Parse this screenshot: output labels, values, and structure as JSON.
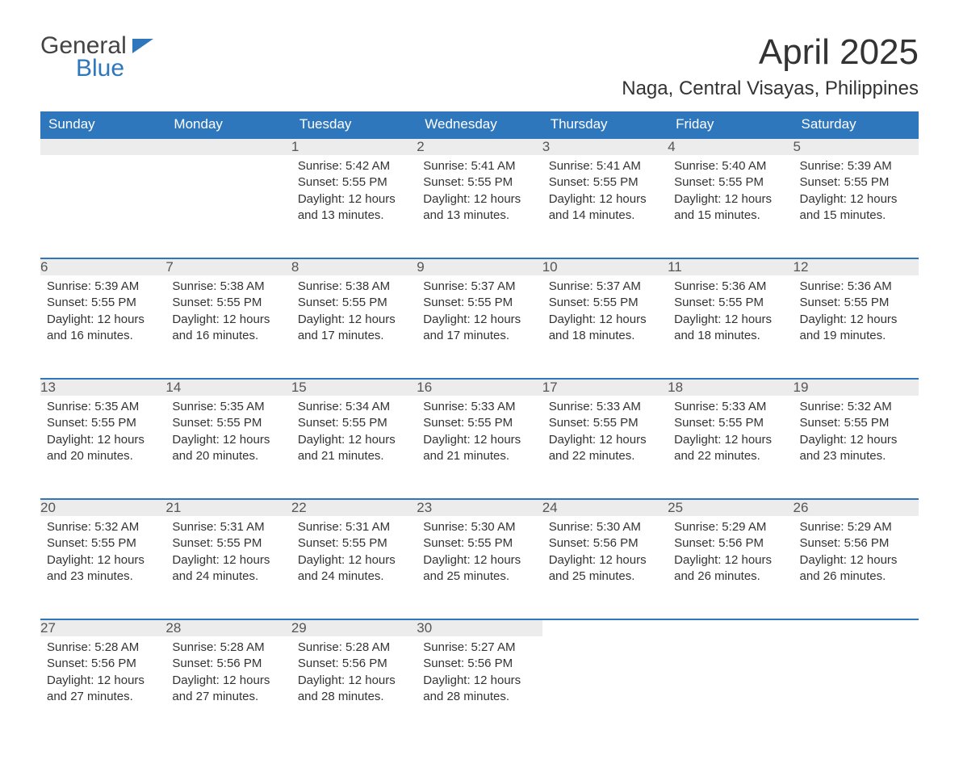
{
  "logo": {
    "general": "General",
    "blue": "Blue"
  },
  "title": "April 2025",
  "location": "Naga, Central Visayas, Philippines",
  "colors": {
    "header_bg": "#2f77bc",
    "header_text": "#ffffff",
    "daynum_bg": "#ececec",
    "daynum_border": "#2f77bc",
    "text": "#333333",
    "background": "#ffffff"
  },
  "layout": {
    "columns": 7,
    "rows": 5,
    "col_width_pct": 14.28
  },
  "weekdays": [
    "Sunday",
    "Monday",
    "Tuesday",
    "Wednesday",
    "Thursday",
    "Friday",
    "Saturday"
  ],
  "weeks": [
    [
      null,
      null,
      {
        "n": "1",
        "sr": "Sunrise: 5:42 AM",
        "ss": "Sunset: 5:55 PM",
        "d1": "Daylight: 12 hours",
        "d2": "and 13 minutes."
      },
      {
        "n": "2",
        "sr": "Sunrise: 5:41 AM",
        "ss": "Sunset: 5:55 PM",
        "d1": "Daylight: 12 hours",
        "d2": "and 13 minutes."
      },
      {
        "n": "3",
        "sr": "Sunrise: 5:41 AM",
        "ss": "Sunset: 5:55 PM",
        "d1": "Daylight: 12 hours",
        "d2": "and 14 minutes."
      },
      {
        "n": "4",
        "sr": "Sunrise: 5:40 AM",
        "ss": "Sunset: 5:55 PM",
        "d1": "Daylight: 12 hours",
        "d2": "and 15 minutes."
      },
      {
        "n": "5",
        "sr": "Sunrise: 5:39 AM",
        "ss": "Sunset: 5:55 PM",
        "d1": "Daylight: 12 hours",
        "d2": "and 15 minutes."
      }
    ],
    [
      {
        "n": "6",
        "sr": "Sunrise: 5:39 AM",
        "ss": "Sunset: 5:55 PM",
        "d1": "Daylight: 12 hours",
        "d2": "and 16 minutes."
      },
      {
        "n": "7",
        "sr": "Sunrise: 5:38 AM",
        "ss": "Sunset: 5:55 PM",
        "d1": "Daylight: 12 hours",
        "d2": "and 16 minutes."
      },
      {
        "n": "8",
        "sr": "Sunrise: 5:38 AM",
        "ss": "Sunset: 5:55 PM",
        "d1": "Daylight: 12 hours",
        "d2": "and 17 minutes."
      },
      {
        "n": "9",
        "sr": "Sunrise: 5:37 AM",
        "ss": "Sunset: 5:55 PM",
        "d1": "Daylight: 12 hours",
        "d2": "and 17 minutes."
      },
      {
        "n": "10",
        "sr": "Sunrise: 5:37 AM",
        "ss": "Sunset: 5:55 PM",
        "d1": "Daylight: 12 hours",
        "d2": "and 18 minutes."
      },
      {
        "n": "11",
        "sr": "Sunrise: 5:36 AM",
        "ss": "Sunset: 5:55 PM",
        "d1": "Daylight: 12 hours",
        "d2": "and 18 minutes."
      },
      {
        "n": "12",
        "sr": "Sunrise: 5:36 AM",
        "ss": "Sunset: 5:55 PM",
        "d1": "Daylight: 12 hours",
        "d2": "and 19 minutes."
      }
    ],
    [
      {
        "n": "13",
        "sr": "Sunrise: 5:35 AM",
        "ss": "Sunset: 5:55 PM",
        "d1": "Daylight: 12 hours",
        "d2": "and 20 minutes."
      },
      {
        "n": "14",
        "sr": "Sunrise: 5:35 AM",
        "ss": "Sunset: 5:55 PM",
        "d1": "Daylight: 12 hours",
        "d2": "and 20 minutes."
      },
      {
        "n": "15",
        "sr": "Sunrise: 5:34 AM",
        "ss": "Sunset: 5:55 PM",
        "d1": "Daylight: 12 hours",
        "d2": "and 21 minutes."
      },
      {
        "n": "16",
        "sr": "Sunrise: 5:33 AM",
        "ss": "Sunset: 5:55 PM",
        "d1": "Daylight: 12 hours",
        "d2": "and 21 minutes."
      },
      {
        "n": "17",
        "sr": "Sunrise: 5:33 AM",
        "ss": "Sunset: 5:55 PM",
        "d1": "Daylight: 12 hours",
        "d2": "and 22 minutes."
      },
      {
        "n": "18",
        "sr": "Sunrise: 5:33 AM",
        "ss": "Sunset: 5:55 PM",
        "d1": "Daylight: 12 hours",
        "d2": "and 22 minutes."
      },
      {
        "n": "19",
        "sr": "Sunrise: 5:32 AM",
        "ss": "Sunset: 5:55 PM",
        "d1": "Daylight: 12 hours",
        "d2": "and 23 minutes."
      }
    ],
    [
      {
        "n": "20",
        "sr": "Sunrise: 5:32 AM",
        "ss": "Sunset: 5:55 PM",
        "d1": "Daylight: 12 hours",
        "d2": "and 23 minutes."
      },
      {
        "n": "21",
        "sr": "Sunrise: 5:31 AM",
        "ss": "Sunset: 5:55 PM",
        "d1": "Daylight: 12 hours",
        "d2": "and 24 minutes."
      },
      {
        "n": "22",
        "sr": "Sunrise: 5:31 AM",
        "ss": "Sunset: 5:55 PM",
        "d1": "Daylight: 12 hours",
        "d2": "and 24 minutes."
      },
      {
        "n": "23",
        "sr": "Sunrise: 5:30 AM",
        "ss": "Sunset: 5:55 PM",
        "d1": "Daylight: 12 hours",
        "d2": "and 25 minutes."
      },
      {
        "n": "24",
        "sr": "Sunrise: 5:30 AM",
        "ss": "Sunset: 5:56 PM",
        "d1": "Daylight: 12 hours",
        "d2": "and 25 minutes."
      },
      {
        "n": "25",
        "sr": "Sunrise: 5:29 AM",
        "ss": "Sunset: 5:56 PM",
        "d1": "Daylight: 12 hours",
        "d2": "and 26 minutes."
      },
      {
        "n": "26",
        "sr": "Sunrise: 5:29 AM",
        "ss": "Sunset: 5:56 PM",
        "d1": "Daylight: 12 hours",
        "d2": "and 26 minutes."
      }
    ],
    [
      {
        "n": "27",
        "sr": "Sunrise: 5:28 AM",
        "ss": "Sunset: 5:56 PM",
        "d1": "Daylight: 12 hours",
        "d2": "and 27 minutes."
      },
      {
        "n": "28",
        "sr": "Sunrise: 5:28 AM",
        "ss": "Sunset: 5:56 PM",
        "d1": "Daylight: 12 hours",
        "d2": "and 27 minutes."
      },
      {
        "n": "29",
        "sr": "Sunrise: 5:28 AM",
        "ss": "Sunset: 5:56 PM",
        "d1": "Daylight: 12 hours",
        "d2": "and 28 minutes."
      },
      {
        "n": "30",
        "sr": "Sunrise: 5:27 AM",
        "ss": "Sunset: 5:56 PM",
        "d1": "Daylight: 12 hours",
        "d2": "and 28 minutes."
      },
      null,
      null,
      null
    ]
  ]
}
